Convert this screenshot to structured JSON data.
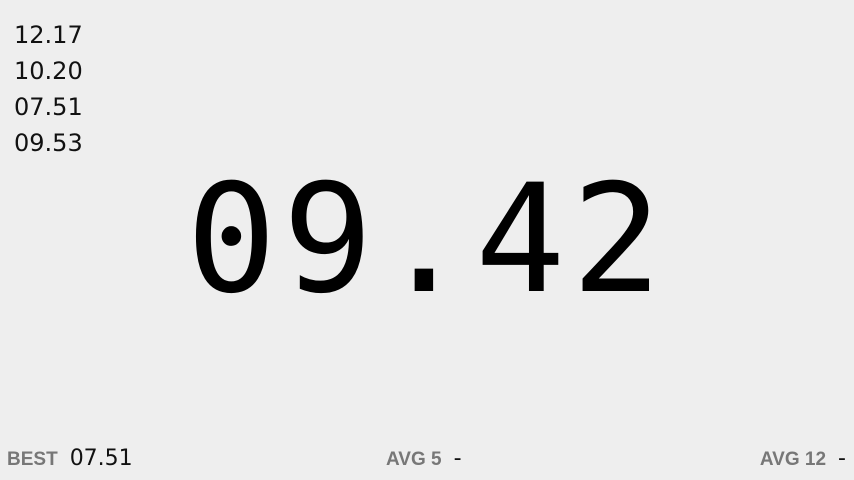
{
  "history": [
    "12.17",
    "10.20",
    "07.51",
    "09.53"
  ],
  "current_time": "09.42",
  "stats": {
    "best_label": "BEST",
    "best_value": "07.51",
    "avg5_label": "AVG 5",
    "avg5_value": "-",
    "avg12_label": "AVG 12",
    "avg12_value": "-"
  },
  "colors": {
    "background": "#eeeeee",
    "text": "#000000",
    "label": "#777777"
  }
}
